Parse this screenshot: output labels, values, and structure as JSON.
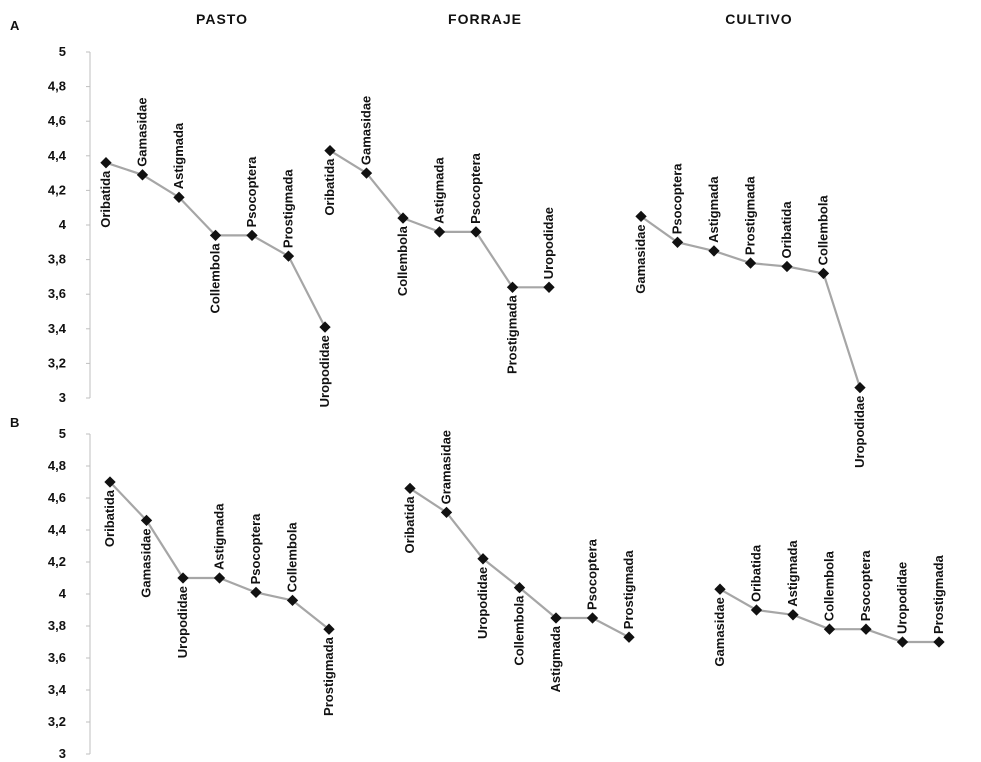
{
  "panels": [
    {
      "letter": "A"
    },
    {
      "letter": "B"
    }
  ],
  "groups": [
    "PASTO",
    "FORRAJE",
    "CULTIVO"
  ],
  "y_ticks": [
    "5",
    "4,8",
    "4,6",
    "4,4",
    "4,2",
    "4",
    "3,8",
    "3,6",
    "3,4",
    "3,2",
    "3"
  ],
  "chart_data": [
    {
      "type": "line",
      "panel": "A",
      "ylim": [
        3,
        5
      ],
      "grid": false,
      "line_color": "#a6a6a6",
      "marker_color": "#111111",
      "series": [
        {
          "name": "PASTO",
          "categories": [
            "Oribatida",
            "Gamasidae",
            "Astigmada",
            "Collembola",
            "Psocoptera",
            "Prostigmada",
            "Uropodidae"
          ],
          "values": [
            4.36,
            4.29,
            4.16,
            3.94,
            3.94,
            3.82,
            3.41
          ]
        },
        {
          "name": "FORRAJE",
          "categories": [
            "Oribatida",
            "Gamasidae",
            "Collembola",
            "Astigmada",
            "Psocoptera",
            "Prostigmada",
            "Uropodidae"
          ],
          "values": [
            4.43,
            4.3,
            4.04,
            3.96,
            3.96,
            3.64,
            3.64
          ]
        },
        {
          "name": "CULTIVO",
          "categories": [
            "Gamasidae",
            "Psocoptera",
            "Astigmada",
            "Prostigmada",
            "Oribatida",
            "Collembola",
            "Uropodidae"
          ],
          "values": [
            4.05,
            3.9,
            3.85,
            3.78,
            3.76,
            3.72,
            3.06
          ]
        }
      ]
    },
    {
      "type": "line",
      "panel": "B",
      "ylim": [
        3,
        5
      ],
      "grid": false,
      "line_color": "#a6a6a6",
      "marker_color": "#111111",
      "series": [
        {
          "name": "PASTO",
          "categories": [
            "Oribatida",
            "Gamasidae",
            "Uropodidae",
            "Astigmada",
            "Psocoptera",
            "Collembola",
            "Prostigmada"
          ],
          "values": [
            4.7,
            4.46,
            4.1,
            4.1,
            4.01,
            3.96,
            3.78
          ]
        },
        {
          "name": "FORRAJE",
          "categories": [
            "Oribatida",
            "Gramasidae",
            "Uropodidae",
            "Collembola",
            "Astigmada",
            "Psocoptera",
            "Prostigmada"
          ],
          "values": [
            4.66,
            4.51,
            4.22,
            4.04,
            3.85,
            3.85,
            3.73
          ]
        },
        {
          "name": "CULTIVO",
          "categories": [
            "Gamasidae",
            "Oribatida",
            "Astigmada",
            "Collembola",
            "Psocoptera",
            "Uropodidae",
            "Prostigmada"
          ],
          "values": [
            4.03,
            3.9,
            3.87,
            3.78,
            3.78,
            3.7,
            3.7
          ]
        }
      ]
    }
  ]
}
